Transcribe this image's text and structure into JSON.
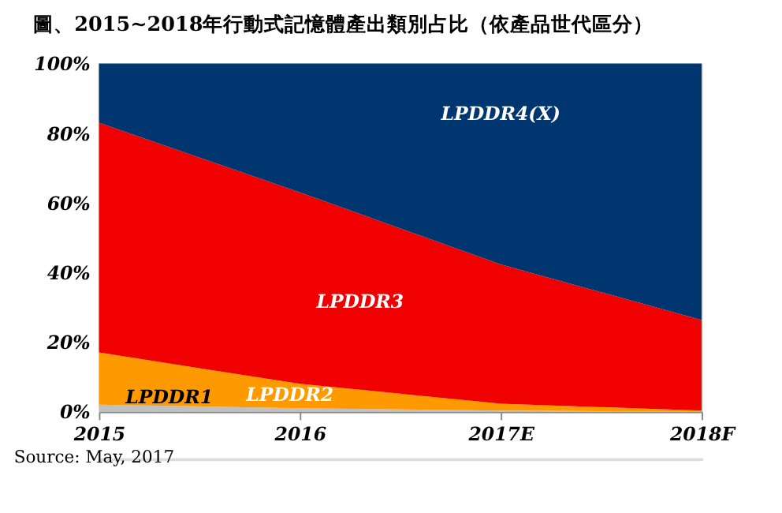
{
  "chart_data": {
    "type": "area",
    "stacked": true,
    "title": "圖、2015~2018年行動式記憶體產出類別占比（依產品世代區分）",
    "categories": [
      "2015",
      "2016",
      "2017E",
      "2018F"
    ],
    "series": [
      {
        "name": "LPDDR1",
        "color": "#c0c0c0",
        "values": [
          2,
          1,
          0.3,
          0
        ]
      },
      {
        "name": "LPDDR2",
        "color": "#ff9900",
        "values": [
          15,
          7,
          2,
          0.3
        ]
      },
      {
        "name": "LPDDR3",
        "color": "#f00000",
        "values": [
          66,
          55,
          40,
          26
        ]
      },
      {
        "name": "LPDDR4(X)",
        "color": "#003670",
        "values": [
          17,
          37,
          57.7,
          73.7
        ]
      }
    ],
    "ylim": [
      0,
      100
    ],
    "yticks": [
      {
        "value": 0,
        "label": "0%"
      },
      {
        "value": 20,
        "label": "20%"
      },
      {
        "value": 40,
        "label": "40%"
      },
      {
        "value": 60,
        "label": "60%"
      },
      {
        "value": 80,
        "label": "80%"
      },
      {
        "value": 100,
        "label": "100%"
      }
    ],
    "grid": false,
    "legend": false,
    "annotations": [
      "Source: May, 2017"
    ]
  }
}
